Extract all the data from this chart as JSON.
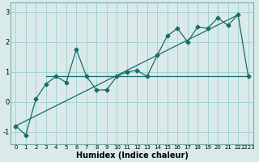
{
  "background_color": "#daeaea",
  "grid_color": "#9ecece",
  "line_color": "#1a6b6b",
  "xlim": [
    -0.5,
    23.5
  ],
  "ylim": [
    -1.4,
    3.3
  ],
  "xlabel": "Humidex (Indice chaleur)",
  "yticks": [
    -1,
    0,
    1,
    2,
    3
  ],
  "xtick_labels": [
    "0",
    "1",
    "2",
    "3",
    "4",
    "5",
    "6",
    "7",
    "8",
    "9",
    "10",
    "11",
    "12",
    "13",
    "14",
    "15",
    "16",
    "17",
    "18",
    "19",
    "20",
    "21",
    "2223"
  ],
  "xticks": [
    0,
    1,
    2,
    3,
    4,
    5,
    6,
    7,
    8,
    9,
    10,
    11,
    12,
    13,
    14,
    15,
    16,
    17,
    18,
    19,
    20,
    21,
    22
  ],
  "zigzag_x": [
    0,
    1,
    2,
    3,
    4,
    5,
    6,
    7,
    8,
    9,
    10,
    11,
    12,
    13,
    14,
    15,
    16,
    17,
    18,
    19,
    20,
    21,
    22,
    23
  ],
  "zigzag_y": [
    -0.8,
    -1.1,
    0.1,
    0.6,
    0.85,
    0.65,
    1.75,
    0.85,
    0.4,
    0.4,
    0.85,
    1.0,
    1.05,
    0.85,
    1.55,
    2.2,
    2.45,
    2.0,
    2.5,
    2.45,
    2.8,
    2.55,
    2.9,
    0.85
  ],
  "trend_x": [
    0,
    22
  ],
  "trend_y": [
    -0.8,
    2.9
  ],
  "hline_x": [
    3,
    23
  ],
  "hline_y": [
    0.85,
    0.85
  ]
}
